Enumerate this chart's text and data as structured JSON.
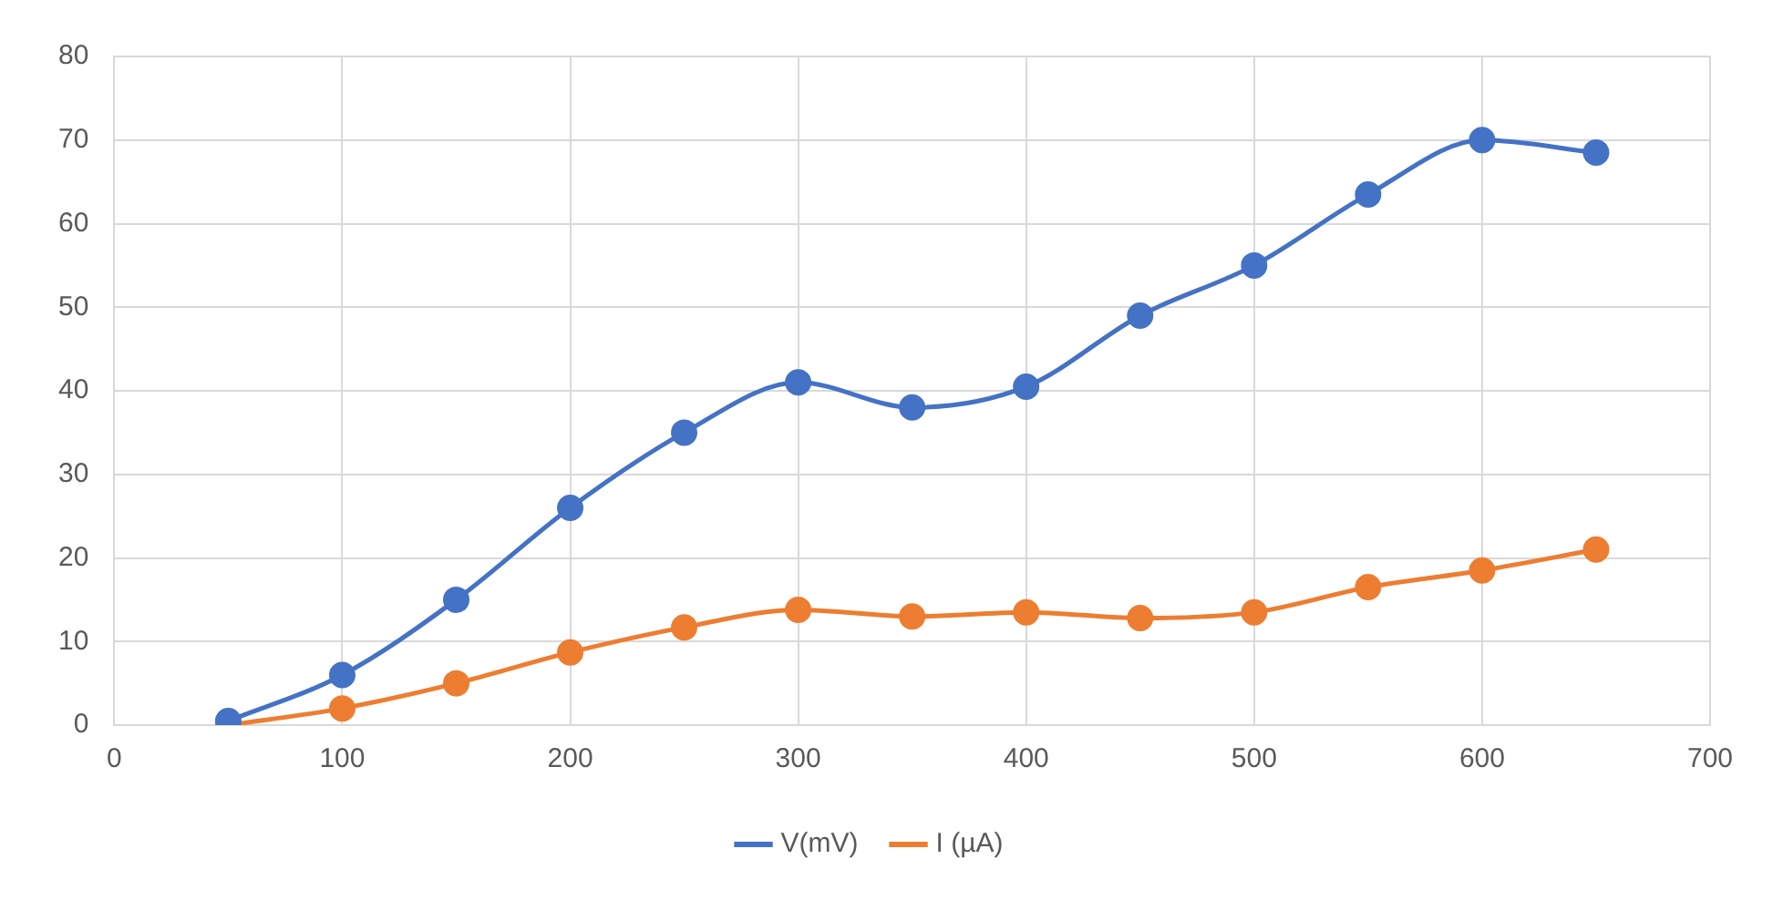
{
  "chart_data": {
    "type": "line",
    "x": [
      50,
      100,
      150,
      200,
      250,
      300,
      350,
      400,
      450,
      500,
      550,
      600,
      650
    ],
    "series": [
      {
        "name": "V(mV)",
        "color": "#4472c4",
        "values": [
          0.5,
          6,
          15,
          26,
          35,
          41,
          38,
          40.5,
          49,
          55,
          63.5,
          70,
          68.5
        ]
      },
      {
        "name": "I (µA)",
        "color": "#ed7d31",
        "values": [
          0,
          2,
          5,
          8.7,
          11.7,
          13.8,
          13,
          13.5,
          12.8,
          13.5,
          16.5,
          18.5,
          21
        ]
      }
    ],
    "xlim": [
      0,
      700
    ],
    "xticks": [
      0,
      100,
      200,
      300,
      400,
      500,
      600,
      700
    ],
    "ylim": [
      0,
      80
    ],
    "yticks": [
      0,
      10,
      20,
      30,
      40,
      50,
      60,
      70,
      80
    ],
    "grid": true,
    "legend": "bottom",
    "marker": "circle",
    "line_style": "solid"
  }
}
